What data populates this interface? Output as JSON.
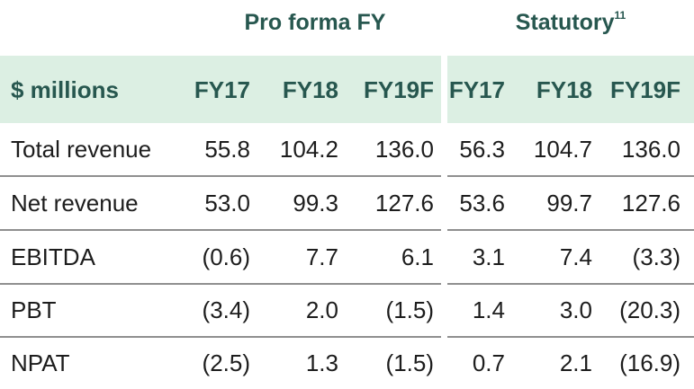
{
  "groups": {
    "proforma": "Pro forma FY",
    "statutory": "Statutory",
    "statutory_footnote": "11"
  },
  "header": {
    "label": "$ millions",
    "columns": [
      "FY17",
      "FY18",
      "FY19F",
      "FY17",
      "FY18",
      "FY19F"
    ]
  },
  "rows": [
    {
      "label": "Total revenue",
      "values": [
        "55.8",
        "104.2",
        "136.0",
        "56.3",
        "104.7",
        "136.0"
      ]
    },
    {
      "label": "Net revenue",
      "values": [
        "53.0",
        "99.3",
        "127.6",
        "53.6",
        "99.7",
        "127.6"
      ]
    },
    {
      "label": "EBITDA",
      "values": [
        "(0.6)",
        "7.7",
        "6.1",
        "3.1",
        "7.4",
        "(3.3)"
      ]
    },
    {
      "label": "PBT",
      "values": [
        "(3.4)",
        "2.0",
        "(1.5)",
        "1.4",
        "3.0",
        "(20.3)"
      ]
    },
    {
      "label": "NPAT",
      "values": [
        "(2.5)",
        "1.3",
        "(1.5)",
        "0.7",
        "2.1",
        "(16.9)"
      ]
    }
  ],
  "colors": {
    "header_band": "#dcefe3",
    "header_text": "#27574f",
    "divider": "#8f8f8f"
  }
}
